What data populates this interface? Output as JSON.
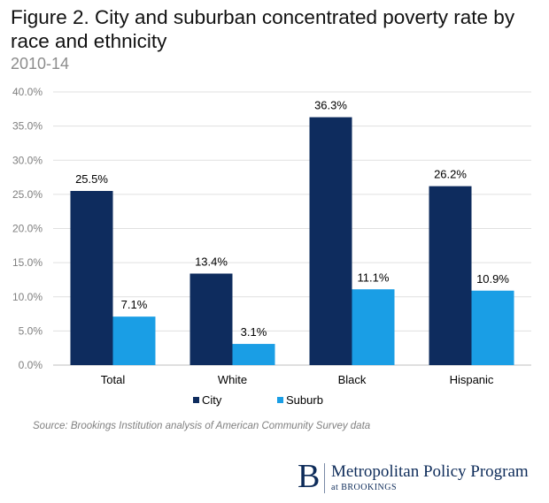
{
  "chart_data": {
    "type": "bar",
    "title": "Figure 2. City and suburban concentrated poverty rate by race and ethnicity",
    "subtitle": "2010-14",
    "categories": [
      "Total",
      "White",
      "Black",
      "Hispanic"
    ],
    "series": [
      {
        "name": "City",
        "color": "#0e2c5e",
        "values": [
          25.5,
          13.4,
          36.3,
          26.2
        ],
        "labels": [
          "25.5%",
          "13.4%",
          "36.3%",
          "26.2%"
        ]
      },
      {
        "name": "Suburb",
        "color": "#1a9ee5",
        "values": [
          7.1,
          3.1,
          11.1,
          10.9
        ],
        "labels": [
          "7.1%",
          "3.1%",
          "11.1%",
          "10.9%"
        ]
      }
    ],
    "ylim": [
      0,
      40
    ],
    "yticks": [
      "0.0%",
      "5.0%",
      "10.0%",
      "15.0%",
      "20.0%",
      "25.0%",
      "30.0%",
      "35.0%",
      "40.0%"
    ],
    "grid": true,
    "legend_position": "bottom"
  },
  "source": "Source: Brookings Institution analysis of American Community Survey data",
  "logo": {
    "mark": "B",
    "name": "Metropolitan Policy Program",
    "sub": "at BROOKINGS"
  }
}
